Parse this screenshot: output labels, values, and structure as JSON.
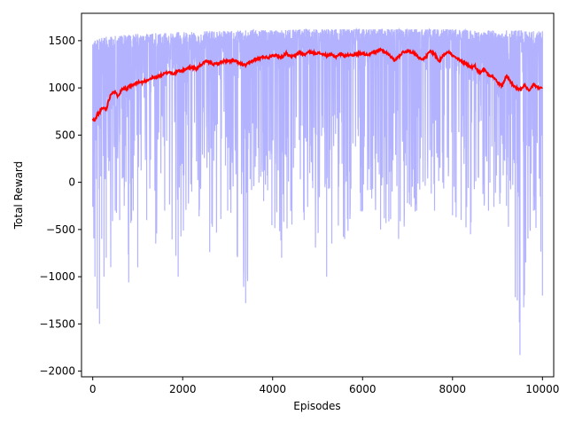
{
  "chart_data": {
    "type": "line",
    "title": "",
    "xlabel": "Episodes",
    "ylabel": "Total Reward",
    "xlim": [
      -250,
      10250
    ],
    "ylim": [
      -2060,
      1790
    ],
    "xticks": [
      0,
      2000,
      4000,
      6000,
      8000,
      10000
    ],
    "xtick_labels": [
      "0",
      "2000",
      "4000",
      "6000",
      "8000",
      "10000"
    ],
    "yticks": [
      -2000,
      -1500,
      -1000,
      -500,
      0,
      500,
      1000,
      1500
    ],
    "ytick_labels": [
      "−2000",
      "−1500",
      "−1000",
      "−500",
      "0",
      "500",
      "1000",
      "1500"
    ],
    "grid": false,
    "legend": "none",
    "series": [
      {
        "role": "raw",
        "color": "#b2b2ff",
        "x": [
          0,
          50,
          100,
          150,
          200,
          250,
          300,
          400,
          500,
          600,
          700,
          800,
          900,
          1000,
          1200,
          1400,
          1600,
          1900,
          2200,
          2600,
          3000,
          3400,
          3800,
          4200,
          4700,
          5200,
          5600,
          6000,
          6400,
          6800,
          7200,
          7600,
          8000,
          8400,
          8800,
          9200,
          9500,
          9800,
          10000
        ],
        "upper": [
          1460,
          1500,
          1510,
          1520,
          1530,
          1530,
          1540,
          1540,
          1550,
          1550,
          1560,
          1560,
          1560,
          1570,
          1570,
          1580,
          1580,
          1590,
          1590,
          1600,
          1600,
          1610,
          1610,
          1610,
          1620,
          1620,
          1620,
          1620,
          1620,
          1620,
          1620,
          1620,
          1620,
          1610,
          1610,
          1610,
          1610,
          1600,
          1600
        ],
        "lower": [
          -260,
          -1000,
          -1340,
          -1500,
          -600,
          -1000,
          -800,
          -900,
          -300,
          -400,
          -250,
          -1060,
          -300,
          -900,
          -400,
          -650,
          -300,
          -1000,
          -100,
          -740,
          -300,
          -1280,
          -200,
          -800,
          -400,
          -1000,
          -600,
          -300,
          -500,
          -600,
          -300,
          -300,
          -350,
          -550,
          -300,
          -250,
          -1830,
          -300,
          -1200
        ]
      },
      {
        "role": "moving-average",
        "color": "#ff0000",
        "x": [
          0,
          50,
          100,
          150,
          200,
          250,
          300,
          350,
          400,
          450,
          500,
          550,
          600,
          650,
          700,
          750,
          800,
          900,
          1000,
          1100,
          1200,
          1300,
          1400,
          1500,
          1600,
          1700,
          1800,
          1900,
          2000,
          2100,
          2200,
          2300,
          2400,
          2500,
          2600,
          2700,
          2800,
          2900,
          3000,
          3100,
          3200,
          3300,
          3400,
          3500,
          3600,
          3700,
          3800,
          3900,
          4000,
          4100,
          4200,
          4300,
          4400,
          4500,
          4600,
          4700,
          4800,
          4900,
          5000,
          5100,
          5200,
          5300,
          5400,
          5500,
          5600,
          5700,
          5800,
          5900,
          6000,
          6100,
          6200,
          6300,
          6400,
          6500,
          6600,
          6700,
          6800,
          6900,
          7000,
          7100,
          7200,
          7300,
          7400,
          7500,
          7600,
          7700,
          7800,
          7900,
          8000,
          8100,
          8200,
          8300,
          8400,
          8500,
          8600,
          8700,
          8800,
          8900,
          9000,
          9100,
          9200,
          9300,
          9400,
          9500,
          9600,
          9700,
          9800,
          9900,
          10000
        ],
        "y": [
          670,
          650,
          720,
          740,
          780,
          790,
          770,
          860,
          930,
          960,
          950,
          920,
          940,
          990,
          1000,
          980,
          1010,
          1030,
          1060,
          1060,
          1080,
          1100,
          1110,
          1130,
          1150,
          1170,
          1150,
          1180,
          1180,
          1210,
          1220,
          1200,
          1240,
          1280,
          1270,
          1250,
          1260,
          1280,
          1280,
          1290,
          1280,
          1250,
          1240,
          1270,
          1300,
          1310,
          1330,
          1320,
          1350,
          1340,
          1320,
          1370,
          1330,
          1340,
          1380,
          1350,
          1380,
          1370,
          1370,
          1360,
          1340,
          1350,
          1330,
          1360,
          1340,
          1350,
          1350,
          1360,
          1370,
          1350,
          1370,
          1380,
          1410,
          1380,
          1350,
          1290,
          1330,
          1380,
          1390,
          1380,
          1350,
          1300,
          1320,
          1390,
          1360,
          1280,
          1350,
          1390,
          1340,
          1310,
          1280,
          1260,
          1220,
          1230,
          1160,
          1200,
          1140,
          1120,
          1060,
          1020,
          1130,
          1060,
          1000,
          980,
          1030,
          960,
          1040,
          1000,
          1000
        ]
      }
    ]
  }
}
